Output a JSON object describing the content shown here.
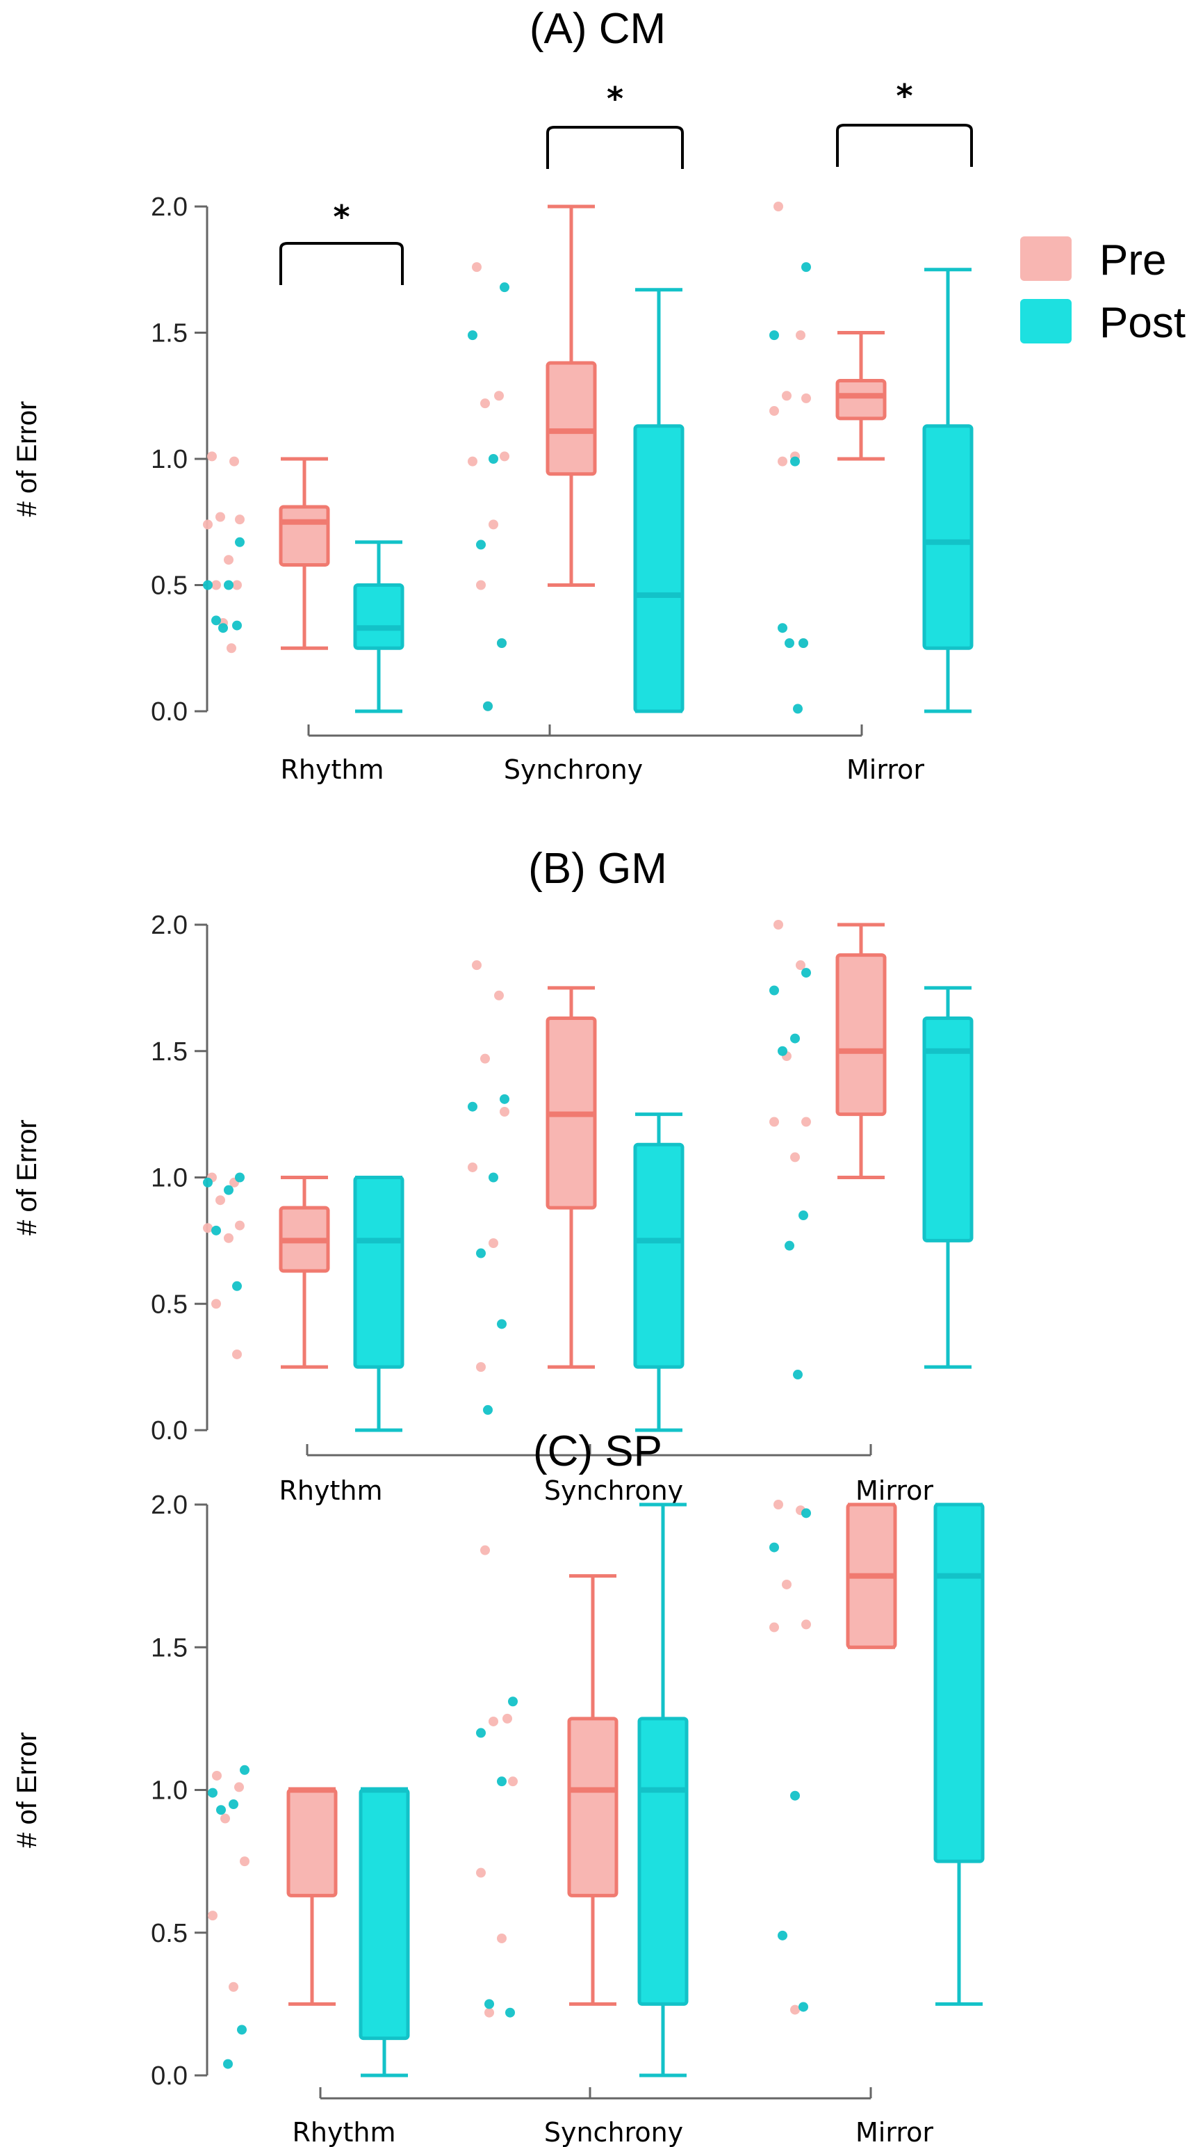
{
  "colors": {
    "pre_fill": "#F8B6B2",
    "pre_line": "#F07A70",
    "post_fill": "#1DE0E0",
    "post_line": "#13C2C8"
  },
  "legend": {
    "entries": [
      "Pre",
      "Post"
    ]
  },
  "chart_data": [
    {
      "type": "box",
      "title": "(A) CM",
      "ylabel": "# of Error",
      "ylim": [
        0,
        2
      ],
      "yticks": [
        "0.0",
        "0.5",
        "1.0",
        "1.5",
        "2.0"
      ],
      "categories": [
        "Rhythm",
        "Synchrony",
        "Mirror"
      ],
      "significance": [
        "*",
        "*",
        "*"
      ],
      "series": [
        {
          "name": "Pre",
          "boxes": [
            {
              "min": 0.25,
              "q1": 0.58,
              "median": 0.75,
              "q3": 0.81,
              "max": 1.0
            },
            {
              "min": 0.5,
              "q1": 0.94,
              "median": 1.11,
              "q3": 1.38,
              "max": 2.0
            },
            {
              "min": 1.0,
              "q1": 1.16,
              "median": 1.25,
              "q3": 1.31,
              "max": 1.5
            }
          ],
          "points": [
            [
              1.01,
              0.99,
              0.77,
              0.76,
              0.74,
              0.6,
              0.5,
              0.5,
              0.35,
              0.25
            ],
            [
              1.76,
              1.25,
              1.22,
              1.01,
              0.99,
              0.74,
              0.5,
              0.27,
              0.02
            ],
            [
              2.0,
              1.49,
              1.25,
              1.24,
              1.19,
              1.01,
              0.99,
              0.27
            ]
          ]
        },
        {
          "name": "Post",
          "boxes": [
            {
              "min": 0.0,
              "q1": 0.25,
              "median": 0.33,
              "q3": 0.5,
              "max": 0.67
            },
            {
              "min": 0.0,
              "q1": 0.0,
              "median": 0.46,
              "q3": 1.13,
              "max": 1.67
            },
            {
              "min": 0.0,
              "q1": 0.25,
              "median": 0.67,
              "q3": 1.13,
              "max": 1.75
            }
          ],
          "points": [
            [
              0.67,
              0.5,
              0.5,
              0.36,
              0.34,
              0.33
            ],
            [
              1.68,
              1.49,
              1.0,
              0.66,
              0.27,
              0.02
            ],
            [
              1.76,
              1.49,
              0.99,
              0.33,
              0.27,
              0.27,
              0.01
            ]
          ]
        }
      ]
    },
    {
      "type": "box",
      "title": "(B) GM",
      "ylabel": "# of Error",
      "ylim": [
        0,
        2
      ],
      "yticks": [
        "0.0",
        "0.5",
        "1.0",
        "1.5",
        "2.0"
      ],
      "categories": [
        "Rhythm",
        "Synchrony",
        "Mirror"
      ],
      "series": [
        {
          "name": "Pre",
          "boxes": [
            {
              "min": 0.25,
              "q1": 0.63,
              "median": 0.75,
              "q3": 0.88,
              "max": 1.0
            },
            {
              "min": 0.25,
              "q1": 0.88,
              "median": 1.25,
              "q3": 1.63,
              "max": 1.75
            },
            {
              "min": 1.0,
              "q1": 1.25,
              "median": 1.5,
              "q3": 1.88,
              "max": 2.0
            }
          ],
          "points": [
            [
              1.0,
              0.98,
              0.91,
              0.81,
              0.8,
              0.76,
              0.5,
              0.3
            ],
            [
              1.84,
              1.72,
              1.47,
              1.26,
              1.04,
              0.74,
              0.25
            ],
            [
              2.0,
              1.84,
              1.48,
              1.22,
              1.22,
              1.08
            ]
          ]
        },
        {
          "name": "Post",
          "boxes": [
            {
              "min": 0.0,
              "q1": 0.25,
              "median": 0.75,
              "q3": 1.0,
              "max": 1.0
            },
            {
              "min": 0.0,
              "q1": 0.25,
              "median": 0.75,
              "q3": 1.13,
              "max": 1.25
            },
            {
              "min": 0.25,
              "q1": 0.75,
              "median": 1.5,
              "q3": 1.63,
              "max": 1.75
            }
          ],
          "points": [
            [
              1.0,
              0.98,
              0.95,
              0.79,
              0.57
            ],
            [
              1.31,
              1.28,
              1.0,
              0.7,
              0.42,
              0.08
            ],
            [
              1.81,
              1.74,
              1.55,
              1.5,
              0.85,
              0.73,
              0.22
            ]
          ]
        }
      ]
    },
    {
      "type": "box",
      "title": "(C) SP",
      "ylabel": "# of Error",
      "ylim": [
        0,
        2
      ],
      "yticks": [
        "0.0",
        "0.5",
        "1.0",
        "1.5",
        "2.0"
      ],
      "categories": [
        "Rhythm",
        "Synchrony",
        "Mirror"
      ],
      "series": [
        {
          "name": "Pre",
          "boxes": [
            {
              "min": 0.25,
              "q1": 0.63,
              "median": 1.0,
              "q3": 1.0,
              "max": 1.0
            },
            {
              "min": 0.25,
              "q1": 0.63,
              "median": 1.0,
              "q3": 1.25,
              "max": 1.75
            },
            {
              "min": 1.5,
              "q1": 1.5,
              "median": 1.75,
              "q3": 2.0,
              "max": 2.0
            }
          ],
          "points": [
            [
              1.05,
              1.01,
              0.9,
              0.75,
              0.56,
              0.31
            ],
            [
              1.84,
              1.25,
              1.24,
              1.03,
              0.71,
              0.48,
              0.22
            ],
            [
              2.0,
              1.98,
              1.72,
              1.58,
              1.57,
              0.23
            ]
          ]
        },
        {
          "name": "Post",
          "boxes": [
            {
              "min": 0.0,
              "q1": 0.13,
              "median": 1.0,
              "q3": 1.0,
              "max": 1.0
            },
            {
              "min": 0.0,
              "q1": 0.25,
              "median": 1.0,
              "q3": 1.25,
              "max": 2.0
            },
            {
              "min": 0.25,
              "q1": 0.75,
              "median": 1.75,
              "q3": 2.0,
              "max": 2.0
            }
          ],
          "points": [
            [
              1.07,
              0.99,
              0.95,
              0.93,
              0.16,
              0.04
            ],
            [
              1.31,
              1.2,
              1.03,
              0.25,
              0.22
            ],
            [
              1.97,
              1.85,
              0.98,
              0.49,
              0.24
            ]
          ]
        }
      ]
    }
  ]
}
